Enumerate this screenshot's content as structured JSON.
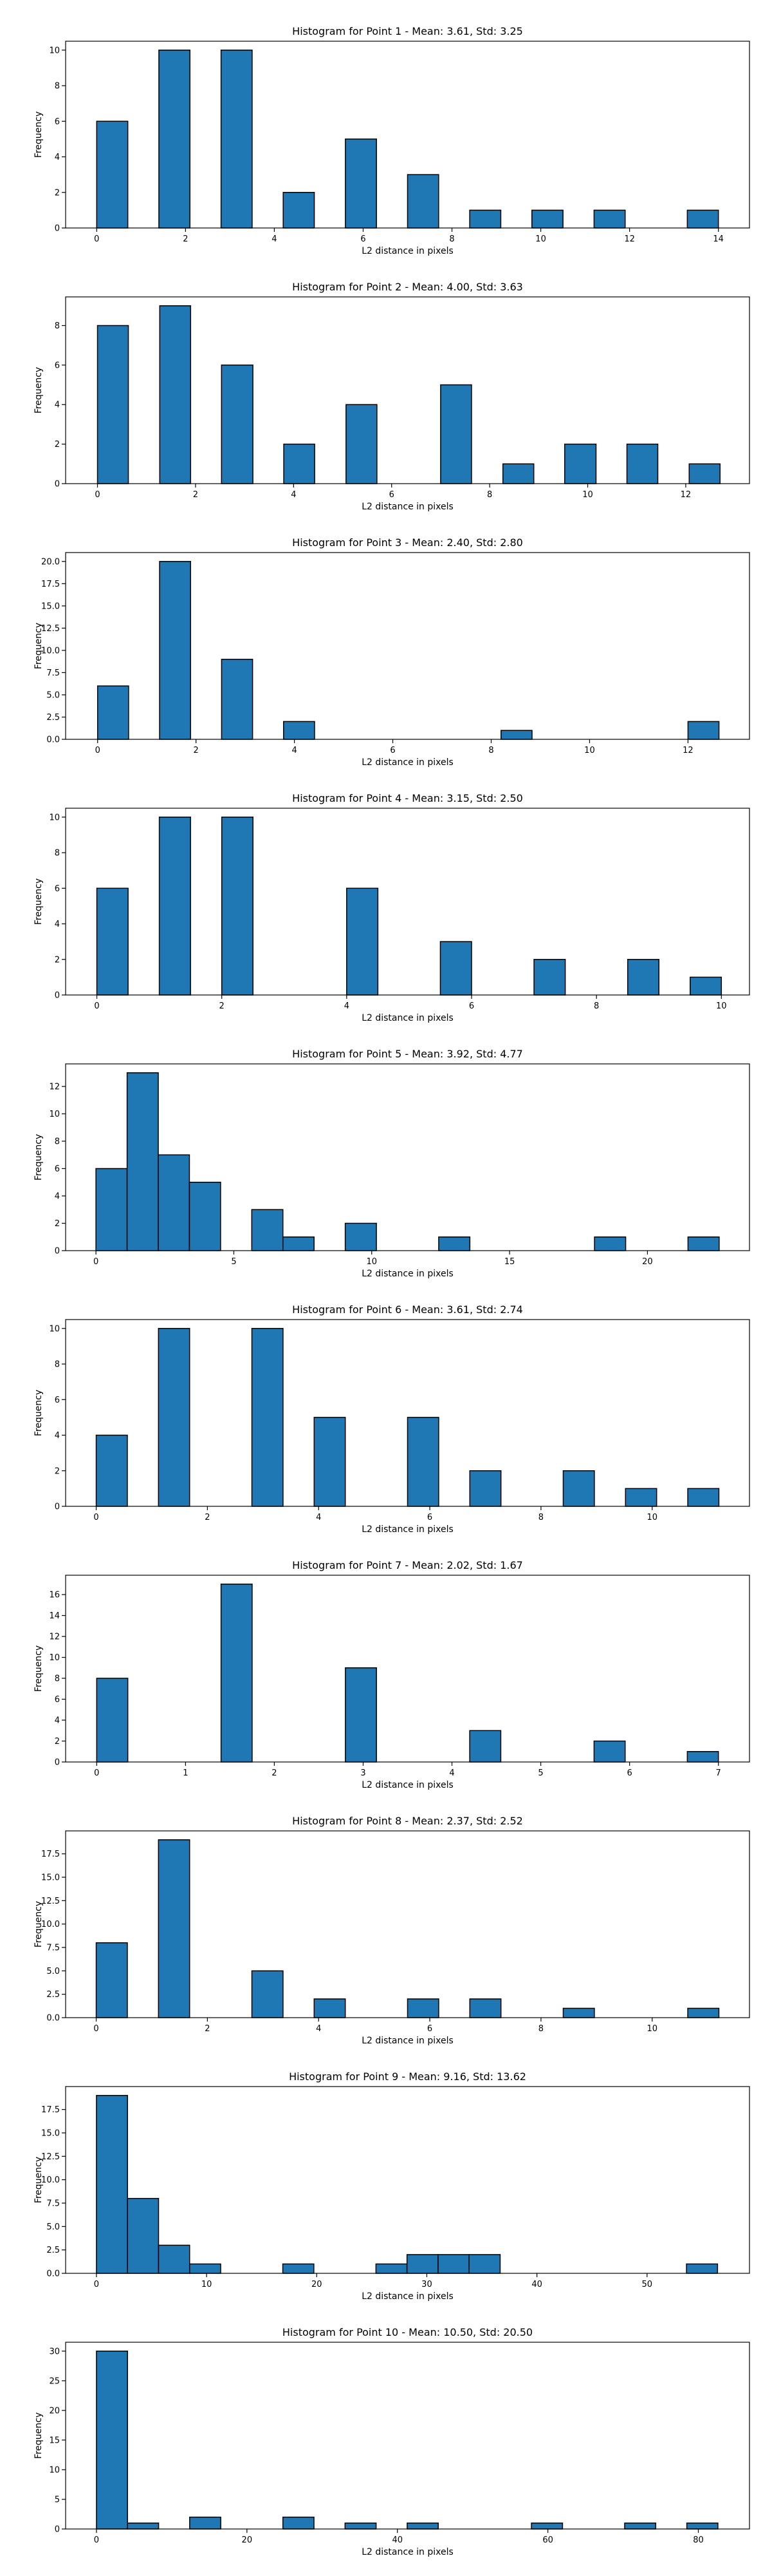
{
  "colors": {
    "bar_fill": "#1f77b4",
    "bar_edge": "#000000",
    "axis": "#000000",
    "background": "#ffffff"
  },
  "chart_data": [
    {
      "type": "bar",
      "title": "Histogram for Point 1 - Mean: 3.61, Std: 3.25",
      "xlabel": "L2 distance in pixels",
      "ylabel": "Frequency",
      "xlim": [
        -0.7,
        14.7
      ],
      "ylim": [
        0,
        10.5
      ],
      "xticks": [
        "0",
        "2",
        "4",
        "6",
        "8",
        "10",
        "12",
        "14"
      ],
      "yticks": [
        "0",
        "2",
        "4",
        "6",
        "8",
        "10"
      ],
      "bins": [
        [
          0.0,
          0.7
        ],
        [
          1.4,
          2.1
        ],
        [
          2.8,
          3.5
        ],
        [
          4.2,
          4.9
        ],
        [
          5.6,
          6.3
        ],
        [
          7.0,
          7.7
        ],
        [
          8.4,
          9.1
        ],
        [
          9.8,
          10.5
        ],
        [
          11.2,
          11.9
        ],
        [
          13.3,
          14.0
        ]
      ],
      "values": [
        6,
        10,
        10,
        2,
        5,
        3,
        1,
        1,
        1,
        1
      ]
    },
    {
      "type": "bar",
      "title": "Histogram for Point 2 - Mean: 4.00, Std: 3.63",
      "xlabel": "L2 distance in pixels",
      "ylabel": "Frequency",
      "xlim": [
        -0.65,
        13.3
      ],
      "ylim": [
        0,
        9.45
      ],
      "xticks": [
        "0",
        "2",
        "4",
        "6",
        "8",
        "10",
        "12"
      ],
      "yticks": [
        "0",
        "2",
        "4",
        "6",
        "8"
      ],
      "bins": [
        [
          0.0,
          0.63
        ],
        [
          1.27,
          1.9
        ],
        [
          2.53,
          3.17
        ],
        [
          3.8,
          4.43
        ],
        [
          5.07,
          5.7
        ],
        [
          7.0,
          7.63
        ],
        [
          8.27,
          8.9
        ],
        [
          9.53,
          10.17
        ],
        [
          10.8,
          11.43
        ],
        [
          12.07,
          12.7
        ]
      ],
      "values": [
        8,
        9,
        6,
        2,
        4,
        5,
        1,
        2,
        2,
        1
      ]
    },
    {
      "type": "bar",
      "title": "Histogram for Point 3 - Mean: 2.40, Std: 2.80",
      "xlabel": "L2 distance in pixels",
      "ylabel": "Frequency",
      "xlim": [
        -0.65,
        13.25
      ],
      "ylim": [
        0,
        21
      ],
      "xticks": [
        "0",
        "2",
        "4",
        "6",
        "8",
        "10",
        "12"
      ],
      "yticks": [
        "0.0",
        "2.5",
        "5.0",
        "7.5",
        "10.0",
        "12.5",
        "15.0",
        "17.5",
        "20.0"
      ],
      "bins": [
        [
          0.0,
          0.63
        ],
        [
          1.26,
          1.89
        ],
        [
          2.52,
          3.15
        ],
        [
          3.78,
          4.41
        ],
        [
          8.2,
          8.83
        ],
        [
          12.0,
          12.63
        ]
      ],
      "values": [
        6,
        20,
        9,
        2,
        1,
        2
      ]
    },
    {
      "type": "bar",
      "title": "Histogram for Point 4 - Mean: 3.15, Std: 2.50",
      "xlabel": "L2 distance in pixels",
      "ylabel": "Frequency",
      "xlim": [
        -0.5,
        10.45
      ],
      "ylim": [
        0,
        10.5
      ],
      "xticks": [
        "0",
        "2",
        "4",
        "6",
        "8",
        "10"
      ],
      "yticks": [
        "0",
        "2",
        "4",
        "6",
        "8",
        "10"
      ],
      "bins": [
        [
          0.0,
          0.5
        ],
        [
          1.0,
          1.5
        ],
        [
          2.0,
          2.5
        ],
        [
          4.0,
          4.5
        ],
        [
          5.5,
          6.0
        ],
        [
          7.0,
          7.5
        ],
        [
          8.5,
          9.0
        ],
        [
          9.5,
          10.0
        ]
      ],
      "values": [
        6,
        10,
        10,
        6,
        3,
        2,
        2,
        1
      ]
    },
    {
      "type": "bar",
      "title": "Histogram for Point 5 - Mean: 3.92, Std: 4.77",
      "xlabel": "L2 distance in pixels",
      "ylabel": "Frequency",
      "xlim": [
        -1.1,
        23.7
      ],
      "ylim": [
        0,
        13.65
      ],
      "xticks": [
        "0",
        "5",
        "10",
        "15",
        "20"
      ],
      "yticks": [
        "0",
        "2",
        "4",
        "6",
        "8",
        "10",
        "12"
      ],
      "bins": [
        [
          0.0,
          1.13
        ],
        [
          1.13,
          2.26
        ],
        [
          2.26,
          3.39
        ],
        [
          3.39,
          4.52
        ],
        [
          5.65,
          6.78
        ],
        [
          6.78,
          7.91
        ],
        [
          9.04,
          10.17
        ],
        [
          12.43,
          13.56
        ],
        [
          18.08,
          19.21
        ],
        [
          21.47,
          22.6
        ]
      ],
      "values": [
        6,
        13,
        7,
        5,
        3,
        1,
        2,
        1,
        1,
        1
      ]
    },
    {
      "type": "bar",
      "title": "Histogram for Point 6 - Mean: 3.61, Std: 2.74",
      "xlabel": "L2 distance in pixels",
      "ylabel": "Frequency",
      "xlim": [
        -0.55,
        11.75
      ],
      "ylim": [
        0,
        10.5
      ],
      "xticks": [
        "0",
        "2",
        "4",
        "6",
        "8",
        "10"
      ],
      "yticks": [
        "0",
        "2",
        "4",
        "6",
        "8",
        "10"
      ],
      "bins": [
        [
          0.0,
          0.56
        ],
        [
          1.12,
          1.68
        ],
        [
          2.8,
          3.36
        ],
        [
          3.92,
          4.48
        ],
        [
          5.6,
          6.16
        ],
        [
          6.72,
          7.28
        ],
        [
          8.4,
          8.96
        ],
        [
          9.52,
          10.08
        ],
        [
          10.64,
          11.2
        ]
      ],
      "values": [
        4,
        10,
        10,
        5,
        5,
        2,
        2,
        1,
        1
      ]
    },
    {
      "type": "bar",
      "title": "Histogram for Point 7 - Mean: 2.02, Std: 1.67",
      "xlabel": "L2 distance in pixels",
      "ylabel": "Frequency",
      "xlim": [
        -0.35,
        7.35
      ],
      "ylim": [
        0,
        17.85
      ],
      "xticks": [
        "0",
        "1",
        "2",
        "3",
        "4",
        "5",
        "6",
        "7"
      ],
      "yticks": [
        "0",
        "2",
        "4",
        "6",
        "8",
        "10",
        "12",
        "14",
        "16"
      ],
      "bins": [
        [
          0.0,
          0.35
        ],
        [
          1.4,
          1.75
        ],
        [
          2.8,
          3.15
        ],
        [
          4.2,
          4.55
        ],
        [
          5.6,
          5.95
        ],
        [
          6.65,
          7.0
        ]
      ],
      "values": [
        8,
        17,
        9,
        3,
        2,
        1
      ]
    },
    {
      "type": "bar",
      "title": "Histogram for Point 8 - Mean: 2.37, Std: 2.52",
      "xlabel": "L2 distance in pixels",
      "ylabel": "Frequency",
      "xlim": [
        -0.55,
        11.75
      ],
      "ylim": [
        0,
        19.95
      ],
      "xticks": [
        "0",
        "2",
        "4",
        "6",
        "8",
        "10"
      ],
      "yticks": [
        "0.0",
        "2.5",
        "5.0",
        "7.5",
        "10.0",
        "12.5",
        "15.0",
        "17.5"
      ],
      "bins": [
        [
          0.0,
          0.56
        ],
        [
          1.12,
          1.68
        ],
        [
          2.8,
          3.36
        ],
        [
          3.92,
          4.48
        ],
        [
          5.6,
          6.16
        ],
        [
          6.72,
          7.28
        ],
        [
          8.4,
          8.96
        ],
        [
          10.64,
          11.2
        ]
      ],
      "values": [
        8,
        19,
        5,
        2,
        2,
        2,
        1,
        1
      ]
    },
    {
      "type": "bar",
      "title": "Histogram for Point 9 - Mean: 9.16, Std: 13.62",
      "xlabel": "L2 distance in pixels",
      "ylabel": "Frequency",
      "xlim": [
        -2.8,
        59.3
      ],
      "ylim": [
        0,
        19.95
      ],
      "xticks": [
        "0",
        "10",
        "20",
        "30",
        "40",
        "50"
      ],
      "yticks": [
        "0.0",
        "2.5",
        "5.0",
        "7.5",
        "10.0",
        "12.5",
        "15.0",
        "17.5"
      ],
      "bins": [
        [
          0.0,
          2.82
        ],
        [
          2.82,
          5.64
        ],
        [
          5.64,
          8.46
        ],
        [
          8.46,
          11.28
        ],
        [
          16.92,
          19.74
        ],
        [
          25.38,
          28.2
        ],
        [
          28.2,
          31.02
        ],
        [
          31.02,
          33.84
        ],
        [
          33.84,
          36.66
        ],
        [
          53.58,
          56.4
        ]
      ],
      "values": [
        19,
        8,
        3,
        1,
        1,
        1,
        2,
        2,
        2,
        1
      ]
    },
    {
      "type": "bar",
      "title": "Histogram for Point 10 - Mean: 10.50, Std: 20.50",
      "xlabel": "L2 distance in pixels",
      "ylabel": "Frequency",
      "xlim": [
        -4.1,
        86.8
      ],
      "ylim": [
        0,
        31.5
      ],
      "xticks": [
        "0",
        "20",
        "40",
        "60",
        "80"
      ],
      "yticks": [
        "0",
        "5",
        "10",
        "15",
        "20",
        "25",
        "30"
      ],
      "bins": [
        [
          0.0,
          4.13
        ],
        [
          4.13,
          8.26
        ],
        [
          12.39,
          16.52
        ],
        [
          24.78,
          28.91
        ],
        [
          33.04,
          37.17
        ],
        [
          41.3,
          45.43
        ],
        [
          57.82,
          61.95
        ],
        [
          70.21,
          74.34
        ],
        [
          78.47,
          82.6
        ]
      ],
      "values": [
        30,
        1,
        2,
        2,
        1,
        1,
        1,
        1,
        1
      ]
    }
  ]
}
